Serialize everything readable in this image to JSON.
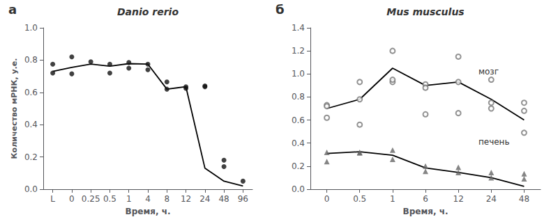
{
  "chart_data": [
    {
      "type": "scatter",
      "title": "Danio rerio",
      "panel_label": "а",
      "xlabel": "Время, ч.",
      "ylabel": "Количество мРНК, у.е.",
      "categories": [
        "L",
        "0",
        "0.25",
        "0.5",
        "1",
        "4",
        "8",
        "12",
        "24",
        "48",
        "96"
      ],
      "ylim": [
        0.0,
        1.0
      ],
      "yticks": [
        {
          "value": 0.0,
          "label": "0.0"
        },
        0.2,
        0.4,
        0.6,
        0.8,
        {
          "value": 1.0,
          "label": "1.0"
        }
      ],
      "grid": false,
      "series": [
        {
          "type": "scatter",
          "color": "#111111",
          "marker": "circle",
          "x": [
            "L",
            "L",
            "0",
            "0",
            "0.25",
            "0.5",
            "0.5",
            "1",
            "1",
            "4",
            "4",
            "8",
            "8",
            "12",
            "12",
            "24",
            "24",
            "48",
            "48",
            "96"
          ],
          "values": [
            0.775,
            0.72,
            0.82,
            0.715,
            0.79,
            0.72,
            0.775,
            0.785,
            0.75,
            0.775,
            0.74,
            0.62,
            0.665,
            0.625,
            0.635,
            0.635,
            0.64,
            0.18,
            0.14,
            0.05
          ]
        },
        {
          "type": "line",
          "color": "#000000",
          "values": [
            0.73,
            0.755,
            0.775,
            0.762,
            0.778,
            0.775,
            0.62,
            0.635,
            0.13,
            0.05,
            0.02
          ]
        }
      ]
    },
    {
      "type": "scatter",
      "title": "Mus musculus",
      "panel_label": "б",
      "xlabel": "Время, ч.",
      "categories": [
        "0",
        "0.5",
        "1",
        "6",
        "12",
        "24",
        "48"
      ],
      "ylim": [
        0.0,
        1.4
      ],
      "yticks": [
        {
          "value": 0.0,
          "label": "0.0"
        },
        0.2,
        0.4,
        0.6,
        0.8,
        {
          "value": 1.0,
          "label": "1.0"
        },
        1.2,
        1.4
      ],
      "grid": false,
      "annotations": [
        "мозг",
        "печень"
      ],
      "series": [
        {
          "type": "scatter",
          "color": "#777777",
          "marker": "open circle",
          "x": [
            "0",
            "0",
            "0",
            "0.5",
            "0.5",
            "0.5",
            "1",
            "1",
            "1",
            "6",
            "6",
            "6",
            "12",
            "12",
            "12",
            "24",
            "24",
            "24",
            "48",
            "48",
            "48"
          ],
          "values": [
            0.73,
            0.62,
            0.72,
            0.93,
            0.56,
            0.78,
            1.2,
            0.93,
            0.95,
            0.91,
            0.88,
            0.65,
            0.93,
            0.66,
            1.15,
            0.75,
            0.7,
            0.95,
            0.68,
            0.49,
            0.75
          ]
        },
        {
          "type": "line",
          "color": "#000000",
          "values": [
            0.7,
            0.78,
            1.05,
            0.9,
            0.93,
            0.78,
            0.6
          ]
        },
        {
          "type": "scatter",
          "color": "#666666",
          "marker": "triangle",
          "x": [
            "0",
            "0",
            "0.5",
            "0.5",
            "1",
            "1",
            "6",
            "6",
            "12",
            "12",
            "24",
            "24",
            "48",
            "48"
          ],
          "values": [
            0.32,
            0.24,
            0.32,
            0.315,
            0.34,
            0.26,
            0.2,
            0.155,
            0.19,
            0.145,
            0.145,
            0.1,
            0.135,
            0.09
          ]
        },
        {
          "type": "line",
          "color": "#000000",
          "values": [
            0.31,
            0.325,
            0.295,
            0.185,
            0.145,
            0.1,
            0.025
          ]
        }
      ]
    }
  ]
}
